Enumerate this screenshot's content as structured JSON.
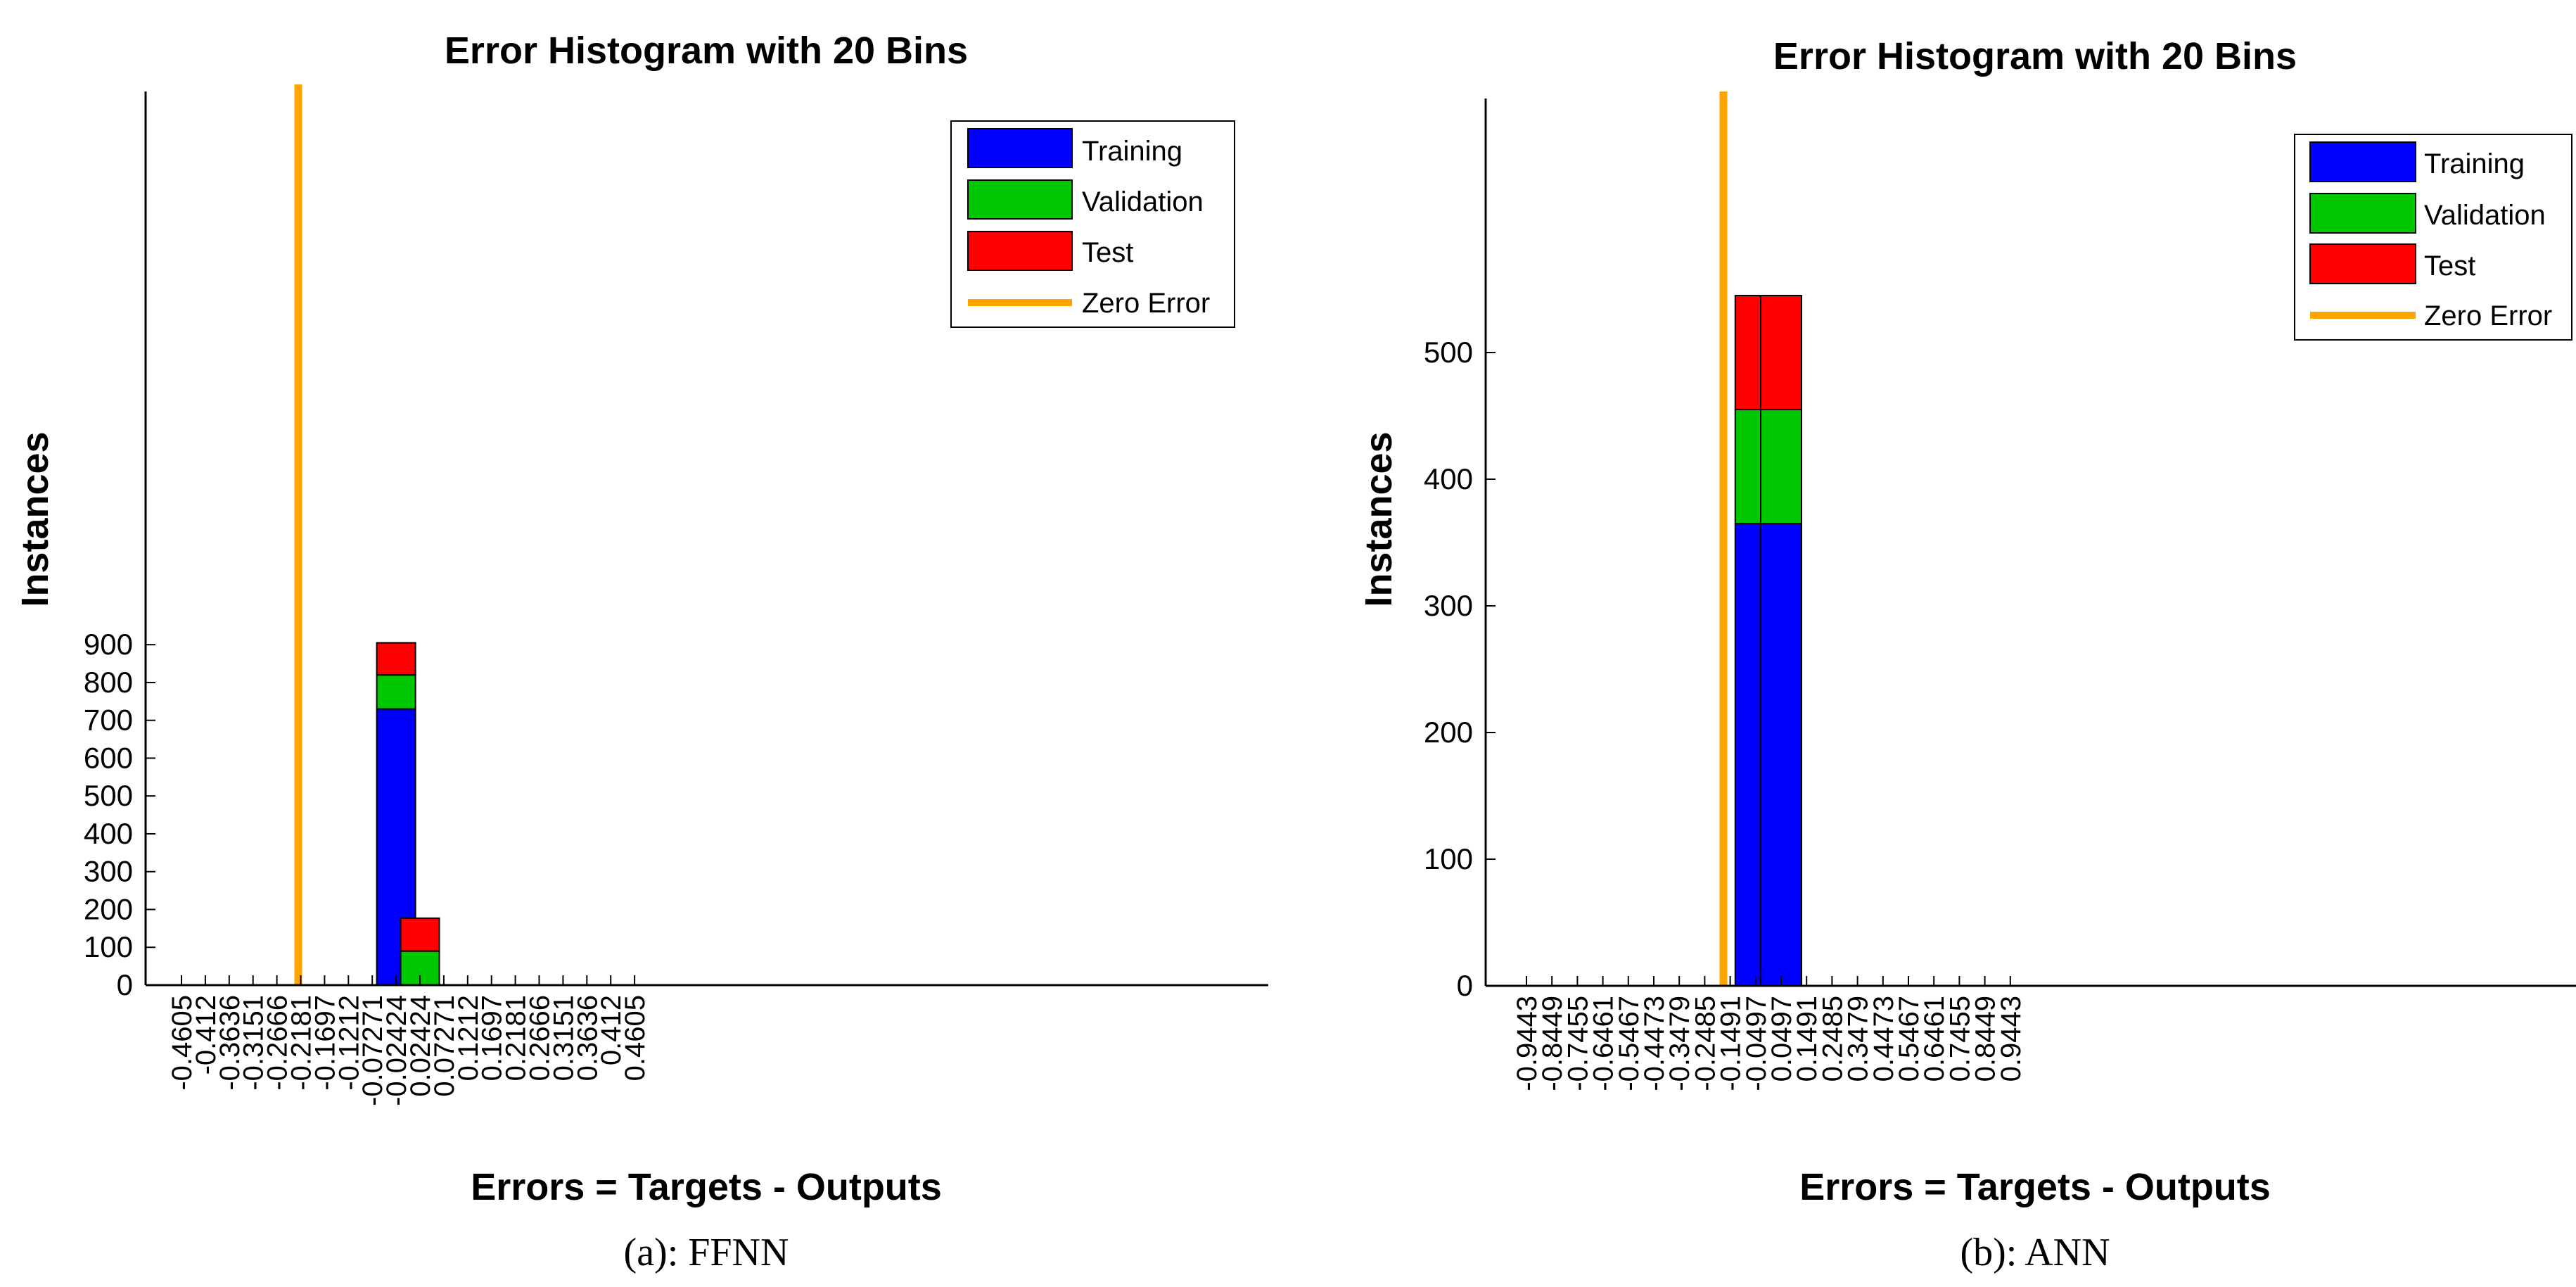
{
  "colors": {
    "training": "#0000ff",
    "validation": "#00c800",
    "test": "#ff0000",
    "zero_error": "#ffa500",
    "axis": "#000000",
    "background": "#ffffff"
  },
  "chart_data": [
    {
      "type": "bar",
      "stacked": true,
      "title": "Error Histogram with 20 Bins",
      "xlabel": "Errors = Targets - Outputs",
      "ylabel": "Instances",
      "caption": "(a): FFNN",
      "ylim": [
        0,
        1000
      ],
      "yticks": [
        0,
        100,
        200,
        300,
        400,
        500,
        600,
        700,
        800,
        900
      ],
      "categories": [
        "-0.4605",
        "-0.412",
        "-0.3636",
        "-0.3151",
        "-0.2666",
        "-0.2181",
        "-0.1697",
        "-0.1212",
        "-0.07271",
        "-0.02424",
        "0.02424",
        "0.07271",
        "0.1212",
        "0.1697",
        "0.2181",
        "0.2666",
        "0.3151",
        "0.3636",
        "0.412",
        "0.4605"
      ],
      "series": [
        {
          "name": "Training",
          "values": [
            0,
            0,
            0,
            0,
            0,
            0,
            0,
            0,
            0,
            730,
            0,
            0,
            0,
            0,
            0,
            0,
            0,
            0,
            0,
            0
          ]
        },
        {
          "name": "Validation",
          "values": [
            0,
            0,
            0,
            0,
            0,
            0,
            0,
            0,
            0,
            90,
            90,
            0,
            0,
            0,
            0,
            0,
            0,
            0,
            0,
            0
          ]
        },
        {
          "name": "Test",
          "values": [
            0,
            0,
            0,
            0,
            0,
            0,
            0,
            0,
            0,
            85,
            87,
            0,
            0,
            0,
            0,
            0,
            0,
            0,
            0,
            0
          ]
        }
      ],
      "zero_error_label": "Zero Error",
      "zero_error_position": 0,
      "legend_position": "top-right",
      "grid": false
    },
    {
      "type": "bar",
      "stacked": true,
      "title": "Error Histogram with 20 Bins",
      "xlabel": "Errors = Targets - Outputs",
      "ylabel": "Instances",
      "caption": "(b): ANN",
      "ylim": [
        0,
        590
      ],
      "yticks": [
        0,
        100,
        200,
        300,
        400,
        500
      ],
      "categories": [
        "-0.9443",
        "-0.8449",
        "-0.7455",
        "-0.6461",
        "-0.5467",
        "-0.4473",
        "-0.3479",
        "-0.2485",
        "-0.1491",
        "-0.0497",
        "0.0497",
        "0.1491",
        "0.2485",
        "0.3479",
        "0.4473",
        "0.5467",
        "0.6461",
        "0.7455",
        "0.8449",
        "0.9443"
      ],
      "series": [
        {
          "name": "Training",
          "values": [
            0,
            0,
            0,
            0,
            0,
            0,
            0,
            0,
            0,
            365,
            365,
            0,
            0,
            0,
            0,
            0,
            0,
            0,
            0,
            0
          ]
        },
        {
          "name": "Validation",
          "values": [
            0,
            0,
            0,
            0,
            0,
            0,
            0,
            0,
            0,
            90,
            90,
            0,
            0,
            0,
            0,
            0,
            0,
            0,
            0,
            0
          ]
        },
        {
          "name": "Test",
          "values": [
            0,
            0,
            0,
            0,
            0,
            0,
            0,
            0,
            0,
            90,
            90,
            0,
            0,
            0,
            0,
            0,
            0,
            0,
            0,
            0
          ]
        }
      ],
      "zero_error_label": "Zero Error",
      "zero_error_position": 0,
      "legend_position": "top-right",
      "grid": false
    }
  ]
}
